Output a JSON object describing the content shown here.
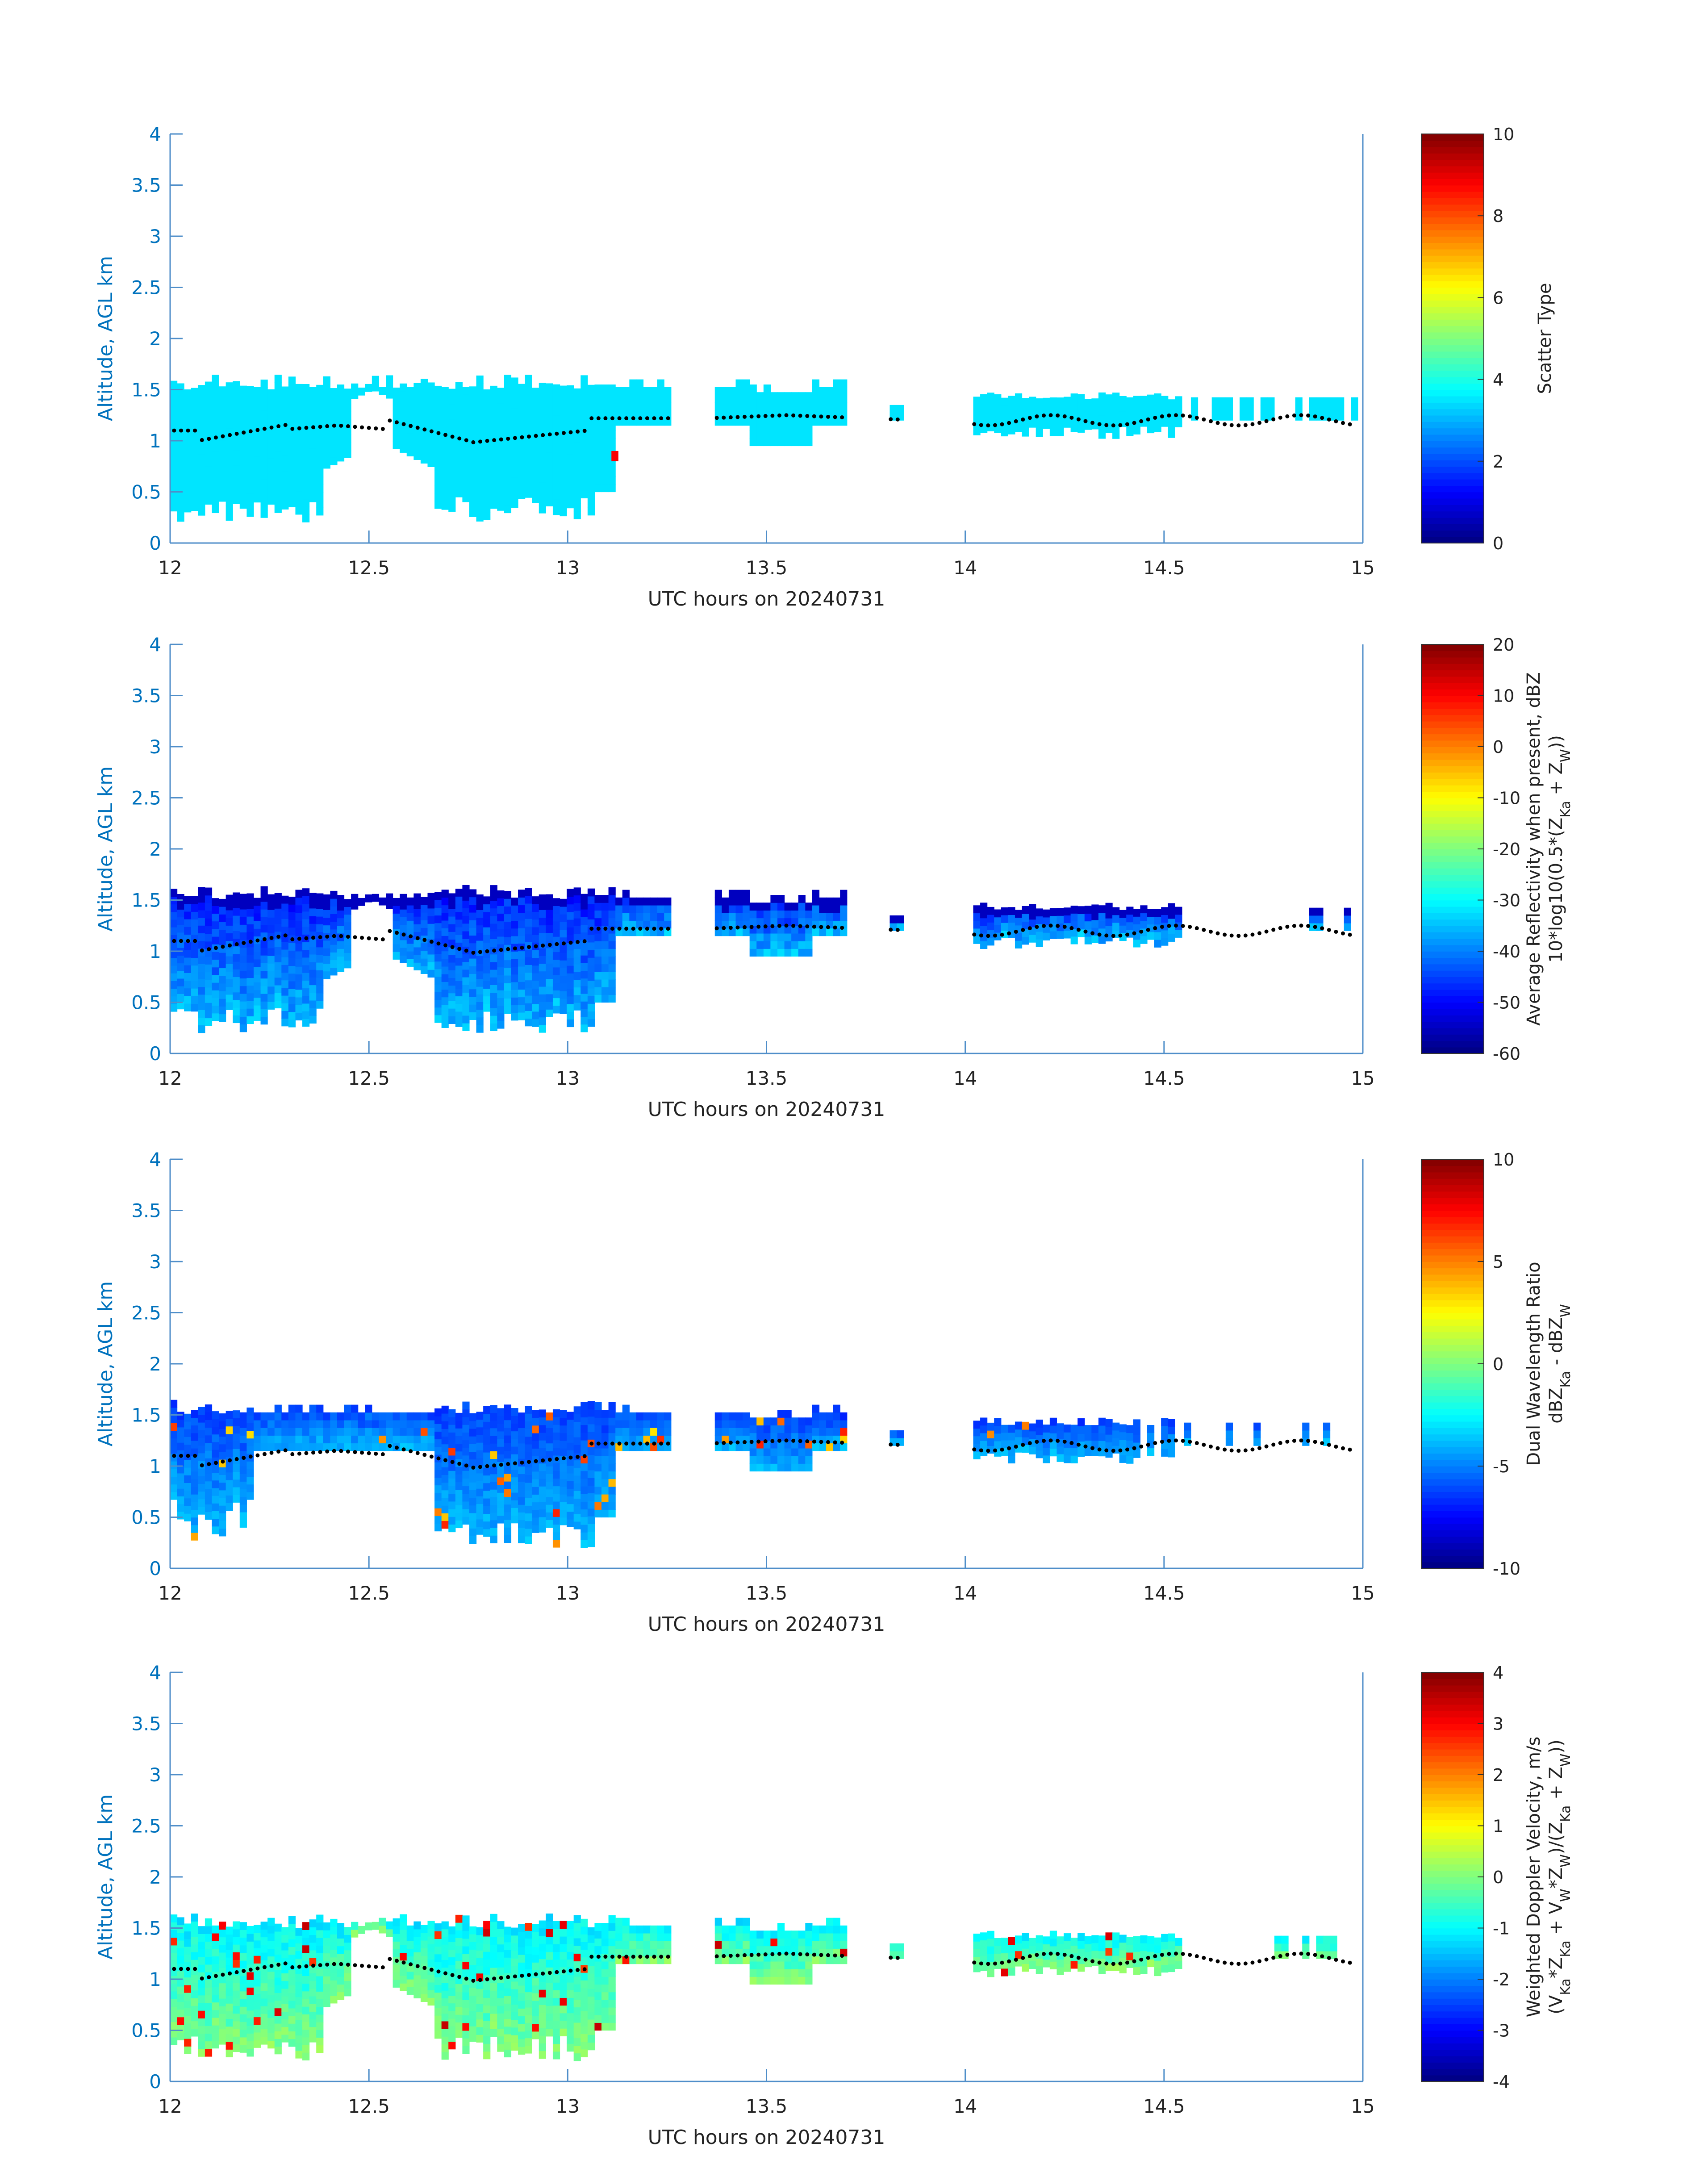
{
  "colors": {
    "axis": "#4f8ec9",
    "tick_label": "#222222",
    "ylabel": "#0072bd",
    "cloud_base_dots": "#000000"
  },
  "chart_data": [
    {
      "type": "heatmap",
      "xlabel": "UTC hours on 20240731",
      "ylabel": "Altitude, AGL km",
      "xlim": [
        12,
        15
      ],
      "ylim": [
        0,
        4
      ],
      "x_ticks": [
        "12",
        "12.5",
        "13",
        "13.5",
        "14",
        "14.5",
        "15"
      ],
      "y_ticks": [
        "0",
        "0.5",
        "1",
        "1.5",
        "2",
        "2.5",
        "3",
        "3.5",
        "4"
      ],
      "colormap": "jet",
      "colorbar": {
        "label_lines": [
          "Scatter Type"
        ],
        "range": [
          0,
          10
        ],
        "ticks": [
          "0",
          "2",
          "4",
          "6",
          "8",
          "10"
        ]
      },
      "cloud_segments": [
        {
          "x0": 12.0,
          "x1": 13.25,
          "top": 1.45,
          "base": 0.2,
          "value": 3.5
        },
        {
          "x0": 13.37,
          "x1": 13.7,
          "top": 1.38,
          "base": 1.05,
          "value": 3.5
        },
        {
          "x0": 13.81,
          "x1": 13.82,
          "top": 1.38,
          "base": 1.15,
          "value": 3.5
        },
        {
          "x0": 14.02,
          "x1": 14.98,
          "top": 1.42,
          "base": 1.05,
          "value": 3.5
        }
      ],
      "highlights": [
        {
          "x": 13.11,
          "y": 0.85,
          "value": 8.8
        }
      ],
      "cloud_base": "dotted"
    },
    {
      "type": "heatmap",
      "xlabel": "UTC hours on 20240731",
      "ylabel": "Altitude, AGL km",
      "xlim": [
        12,
        15
      ],
      "ylim": [
        0,
        4
      ],
      "x_ticks": [
        "12",
        "12.5",
        "13",
        "13.5",
        "14",
        "14.5",
        "15"
      ],
      "y_ticks": [
        "0",
        "0.5",
        "1",
        "1.5",
        "2",
        "2.5",
        "3",
        "3.5",
        "4"
      ],
      "colormap": "jet",
      "colorbar": {
        "label_lines": [
          "Average Reflectivity when present, dBZ",
          "10*log10(0.5*(Z",
          "Ka",
          " + Z",
          "W",
          "))"
        ],
        "range": [
          -60,
          20
        ],
        "ticks": [
          "-60",
          "-50",
          "-40",
          "-30",
          "-20",
          "-10",
          "0",
          "10",
          "20"
        ]
      },
      "value_range_estimate": [
        -58,
        -30
      ],
      "cloud_base": "dotted"
    },
    {
      "type": "heatmap",
      "xlabel": "UTC hours on 20240731",
      "ylabel": "Altitude, AGL km",
      "xlim": [
        12,
        15
      ],
      "ylim": [
        0,
        4
      ],
      "x_ticks": [
        "12",
        "12.5",
        "13",
        "13.5",
        "14",
        "14.5",
        "15"
      ],
      "y_ticks": [
        "0",
        "0.5",
        "1",
        "1.5",
        "2",
        "2.5",
        "3",
        "3.5",
        "4"
      ],
      "colormap": "jet",
      "colorbar": {
        "label_lines": [
          "Dual Wavelength Ratio",
          "dBZ",
          "Ka",
          " - dBZ",
          "W"
        ],
        "range": [
          -10,
          10
        ],
        "ticks": [
          "-10",
          "-5",
          "0",
          "5",
          "10"
        ]
      },
      "value_range_estimate": [
        -8,
        -3
      ],
      "cloud_base": "dotted"
    },
    {
      "type": "heatmap",
      "xlabel": "UTC hours on 20240731",
      "ylabel": "Altitude, AGL km",
      "xlim": [
        12,
        15
      ],
      "ylim": [
        0,
        4
      ],
      "x_ticks": [
        "12",
        "12.5",
        "13",
        "13.5",
        "14",
        "14.5",
        "15"
      ],
      "y_ticks": [
        "0",
        "0.5",
        "1",
        "1.5",
        "2",
        "2.5",
        "3",
        "3.5",
        "4"
      ],
      "colormap": "jet",
      "colorbar": {
        "label_lines": [
          "Weighted Doppler Velocity, m/s",
          "(V",
          "Ka",
          "*Z",
          "Ka",
          " + V",
          "W",
          "*Z",
          "W",
          ")/(Z",
          "Ka",
          " + Z",
          "W",
          "))"
        ],
        "range": [
          -4,
          4
        ],
        "ticks": [
          "-4",
          "-3",
          "-2",
          "-1",
          "0",
          "1",
          "2",
          "3",
          "4"
        ]
      },
      "value_range_estimate": [
        -2,
        0.5
      ],
      "cloud_base": "dotted"
    }
  ]
}
